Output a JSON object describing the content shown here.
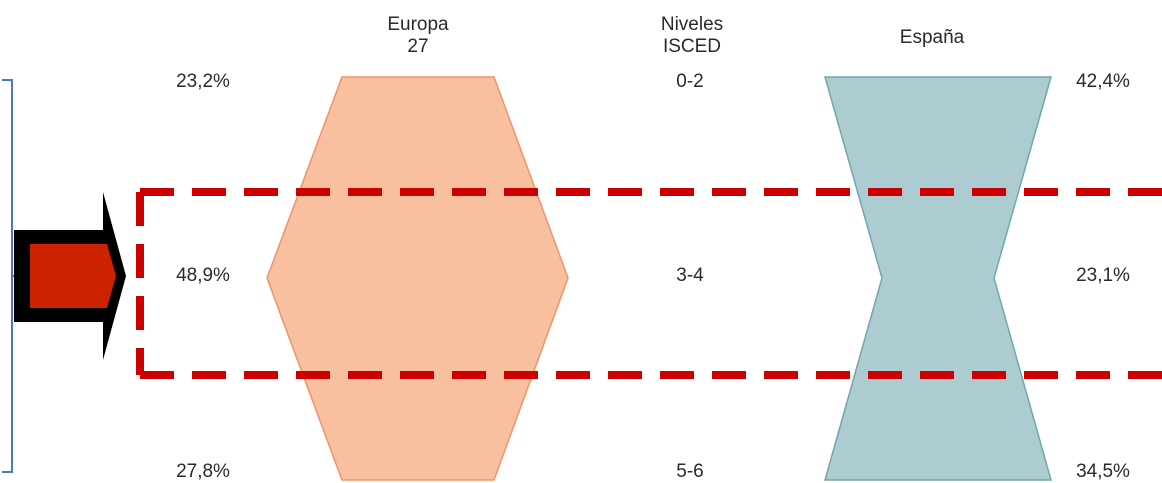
{
  "headers": {
    "europe_line1": "Europa",
    "europe_line2": "27",
    "levels_line1": "Niveles",
    "levels_line2": "ISCED",
    "spain": "España"
  },
  "rows": [
    {
      "level": "0-2",
      "europe": "23,2%",
      "spain": "42,4%"
    },
    {
      "level": "3-4",
      "europe": "48,9%",
      "spain": "23,1%"
    },
    {
      "level": "5-6",
      "europe": "27,8%",
      "spain": "34,5%"
    }
  ],
  "chart_data": {
    "type": "diagram",
    "categories": [
      "0-2",
      "3-4",
      "5-6"
    ],
    "series": [
      {
        "name": "Europa 27",
        "values": [
          23.2,
          48.9,
          27.8
        ]
      },
      {
        "name": "España",
        "values": [
          42.4,
          23.1,
          34.5
        ]
      }
    ]
  },
  "colors": {
    "europe_fill": "#f9c0a0",
    "europe_stroke": "#f0926a",
    "spain_fill": "#acccd2",
    "spain_stroke": "#72a6ad",
    "highlight_dash": "#cc0000",
    "bracket": "#4a7ab8",
    "arrow_fill": "#cc2200",
    "arrow_outline": "#000000"
  }
}
